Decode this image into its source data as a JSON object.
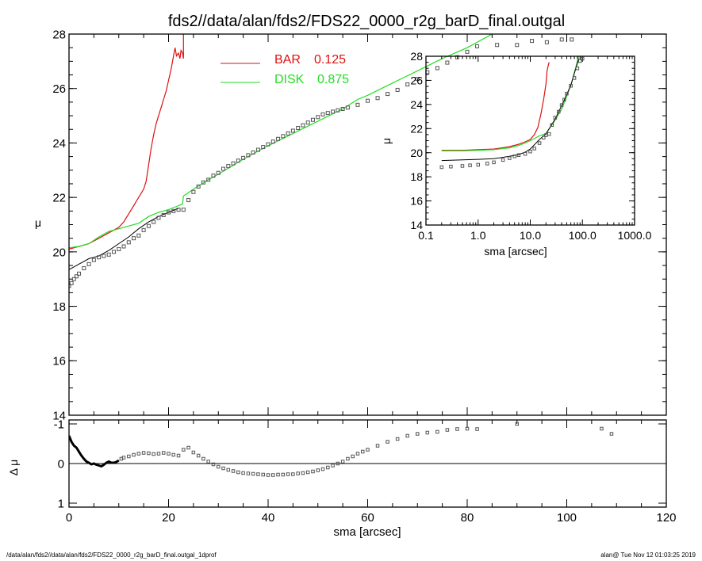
{
  "title": "fds2//data/alan/fds2/FDS22_0000_r2g_barD_final.outgal",
  "footer_left": "/data/alan/fds2//data/alan/fds2/FDS22_0000_r2g_barD_final.outgal_1dprof",
  "footer_right": "alan@  Tue Nov 12 01:03:25 2019",
  "colors": {
    "bar": "#dd1111",
    "disk": "#22dd22",
    "model": "#000000",
    "data": "#555555"
  },
  "chart_data": [
    {
      "name": "main-profile",
      "type": "line",
      "xlabel": "",
      "ylabel": "μ",
      "xlim": [
        0,
        120
      ],
      "ylim": [
        28,
        14
      ],
      "xticks": [
        0,
        20,
        40,
        60,
        80,
        100,
        120
      ],
      "xtick_labels": [
        "",
        "",
        "",
        "",
        "",
        "",
        ""
      ],
      "yticks": [
        14,
        16,
        18,
        20,
        22,
        24,
        26,
        28
      ],
      "ytick_labels": [
        "14",
        "16",
        "18",
        "20",
        "22",
        "24",
        "26",
        "28"
      ],
      "legend": [
        {
          "label": "BAR",
          "value": "0.125",
          "color": "#dd1111"
        },
        {
          "label": "DISK",
          "value": "0.875",
          "color": "#22dd22"
        }
      ],
      "series": [
        {
          "name": "BAR",
          "color": "#dd1111",
          "x": [
            0,
            2,
            4,
            6,
            8,
            10,
            11,
            12,
            13,
            14,
            15,
            15.5,
            16,
            16.5,
            17,
            17.5,
            18,
            18.5,
            19,
            19.5,
            20,
            20.5,
            21,
            21.3,
            21.6,
            22,
            22.3,
            22.5,
            22.8,
            23,
            23
          ],
          "y": [
            20.1,
            20.2,
            20.3,
            20.5,
            20.7,
            20.9,
            21.1,
            21.4,
            21.7,
            22.0,
            22.3,
            22.6,
            23.2,
            23.8,
            24.3,
            24.7,
            25.0,
            25.3,
            25.6,
            25.9,
            26.3,
            26.7,
            27.2,
            27.5,
            27.2,
            27.3,
            27.1,
            27.4,
            27.3,
            27.1,
            28.0
          ]
        },
        {
          "name": "DISK",
          "color": "#22dd22",
          "x": [
            0,
            2,
            4,
            6,
            8,
            10,
            12,
            14,
            16,
            18,
            20,
            22,
            22.8,
            23,
            25,
            28,
            30,
            35,
            40,
            45,
            50,
            55,
            58,
            60,
            65,
            70,
            75,
            80,
            85
          ],
          "y": [
            20.15,
            20.2,
            20.3,
            20.55,
            20.75,
            20.85,
            20.95,
            21.05,
            21.3,
            21.45,
            21.55,
            21.7,
            21.75,
            22.05,
            22.3,
            22.65,
            22.85,
            23.4,
            23.9,
            24.35,
            24.8,
            25.25,
            25.6,
            25.75,
            26.2,
            26.65,
            27.1,
            27.5,
            28.0
          ]
        },
        {
          "name": "MODEL",
          "color": "#000000",
          "x": [
            0,
            1,
            2,
            3,
            4,
            5,
            6,
            8,
            10,
            12,
            14,
            16,
            18,
            20,
            22
          ],
          "y": [
            19.35,
            19.45,
            19.55,
            19.65,
            19.75,
            19.8,
            19.85,
            20.05,
            20.3,
            20.55,
            20.85,
            21.1,
            21.3,
            21.45,
            21.6
          ]
        },
        {
          "name": "DATA",
          "color": "#555555",
          "x": [
            0,
            0.5,
            1,
            1.5,
            2,
            3,
            4,
            5,
            6,
            7,
            8,
            9,
            10,
            11,
            12,
            13,
            14,
            15,
            16,
            17,
            18,
            19,
            20,
            21,
            22,
            23,
            24,
            25,
            26,
            27,
            28,
            29,
            30,
            31,
            32,
            33,
            34,
            35,
            36,
            37,
            38,
            39,
            40,
            41,
            42,
            43,
            44,
            45,
            46,
            47,
            48,
            49,
            50,
            51,
            52,
            53,
            54,
            55,
            56,
            58,
            60,
            62,
            64,
            66,
            68,
            70,
            72,
            74,
            76,
            78,
            80,
            82,
            86,
            90,
            93,
            96,
            99,
            101
          ],
          "y": [
            18.75,
            18.85,
            19.0,
            19.1,
            19.2,
            19.4,
            19.55,
            19.7,
            19.8,
            19.85,
            19.9,
            20.0,
            20.1,
            20.2,
            20.35,
            20.5,
            20.6,
            20.8,
            20.95,
            21.1,
            21.25,
            21.35,
            21.45,
            21.5,
            21.55,
            21.55,
            21.9,
            22.2,
            22.4,
            22.55,
            22.65,
            22.8,
            22.9,
            23.05,
            23.15,
            23.25,
            23.35,
            23.45,
            23.55,
            23.65,
            23.75,
            23.85,
            23.95,
            24.05,
            24.15,
            24.25,
            24.35,
            24.45,
            24.55,
            24.65,
            24.75,
            24.85,
            24.95,
            25.05,
            25.1,
            25.15,
            25.2,
            25.25,
            25.3,
            25.4,
            25.55,
            25.65,
            25.8,
            25.95,
            26.15,
            26.35,
            26.6,
            26.75,
            26.95,
            27.15,
            27.35,
            27.55,
            27.6,
            27.6,
            27.75,
            27.7,
            27.8,
            27.8
          ]
        }
      ]
    },
    {
      "name": "residual",
      "type": "scatter",
      "xlabel": "sma [arcsec]",
      "ylabel": "Δ μ",
      "xlim": [
        0,
        120
      ],
      "ylim": [
        -1.1,
        1.1
      ],
      "xticks": [
        0,
        20,
        40,
        60,
        80,
        100,
        120
      ],
      "xtick_labels": [
        "0",
        "20",
        "40",
        "60",
        "80",
        "100",
        "120"
      ],
      "yticks": [
        -1,
        0,
        1
      ],
      "ytick_labels": [
        "-1",
        "0",
        "1"
      ],
      "zero_line": 0,
      "series": [
        {
          "name": "residual-line",
          "color": "#000000",
          "x": [
            0,
            0.5,
            1,
            1.5,
            2,
            2.5,
            3,
            3.5,
            4,
            4.5,
            5,
            5.5,
            6,
            6.5,
            7,
            7.5,
            8,
            8.5,
            9,
            9.5,
            10
          ],
          "y": [
            -0.7,
            -0.55,
            -0.45,
            -0.4,
            -0.3,
            -0.2,
            -0.12,
            -0.05,
            -0.02,
            0.02,
            0.0,
            0.03,
            0.05,
            0.07,
            0.03,
            -0.02,
            -0.05,
            -0.02,
            -0.02,
            -0.04,
            -0.08
          ]
        },
        {
          "name": "residual-points",
          "color": "#555555",
          "x": [
            10.5,
            11,
            12,
            13,
            14,
            15,
            16,
            17,
            18,
            19,
            20,
            21,
            22,
            23,
            24,
            25,
            26,
            27,
            28,
            29,
            30,
            31,
            32,
            33,
            34,
            35,
            36,
            37,
            38,
            39,
            40,
            41,
            42,
            43,
            44,
            45,
            46,
            47,
            48,
            49,
            50,
            51,
            52,
            53,
            54,
            55,
            56,
            57,
            58,
            59,
            60,
            62,
            64,
            66,
            68,
            70,
            72,
            74,
            76,
            78,
            80,
            82,
            90,
            107,
            109
          ],
          "y": [
            -0.12,
            -0.15,
            -0.18,
            -0.22,
            -0.25,
            -0.27,
            -0.26,
            -0.24,
            -0.25,
            -0.27,
            -0.25,
            -0.22,
            -0.2,
            -0.35,
            -0.4,
            -0.28,
            -0.2,
            -0.12,
            -0.05,
            0.02,
            0.08,
            0.12,
            0.16,
            0.19,
            0.22,
            0.24,
            0.25,
            0.26,
            0.27,
            0.28,
            0.29,
            0.29,
            0.28,
            0.28,
            0.27,
            0.27,
            0.25,
            0.24,
            0.22,
            0.2,
            0.17,
            0.14,
            0.1,
            0.05,
            0.0,
            -0.05,
            -0.12,
            -0.18,
            -0.25,
            -0.3,
            -0.35,
            -0.45,
            -0.55,
            -0.62,
            -0.7,
            -0.75,
            -0.78,
            -0.8,
            -0.85,
            -0.87,
            -0.88,
            -0.87,
            -1.0,
            -0.88,
            -0.75
          ]
        }
      ]
    },
    {
      "name": "inset-log-profile",
      "type": "line",
      "xlabel": "sma [arcsec]",
      "ylabel": "μ",
      "xscale": "log",
      "xlim": [
        0.1,
        1000
      ],
      "ylim": [
        28,
        14
      ],
      "xticks": [
        0.1,
        1,
        10,
        100,
        1000
      ],
      "xtick_labels": [
        "0.1",
        "1.0",
        "10.0",
        "100.0",
        "1000.0"
      ],
      "yticks": [
        14,
        16,
        18,
        20,
        22,
        24,
        26,
        28
      ],
      "ytick_labels": [
        "14",
        "16",
        "18",
        "20",
        "22",
        "24",
        "26",
        "28"
      ],
      "series": [
        {
          "name": "BAR",
          "color": "#dd1111",
          "x": [
            0.2,
            0.5,
            1,
            2,
            4,
            6,
            8,
            10,
            12,
            14,
            16,
            18,
            20,
            21,
            22,
            23
          ],
          "y": [
            20.2,
            20.2,
            20.25,
            20.3,
            20.5,
            20.7,
            20.9,
            21.1,
            21.5,
            22.1,
            23.2,
            24.4,
            25.7,
            26.8,
            27.2,
            27.5
          ]
        },
        {
          "name": "DISK",
          "color": "#22dd22",
          "x": [
            0.2,
            0.5,
            1,
            2,
            4,
            6,
            8,
            10,
            15,
            20,
            30,
            40,
            60,
            85
          ],
          "y": [
            20.15,
            20.15,
            20.2,
            20.25,
            20.4,
            20.6,
            20.8,
            21.0,
            21.4,
            21.6,
            22.7,
            23.6,
            25.6,
            28.0
          ]
        },
        {
          "name": "MODEL",
          "color": "#000000",
          "x": [
            0.2,
            0.5,
            1,
            2,
            4,
            6,
            8,
            10,
            15,
            20,
            30,
            40,
            60,
            85
          ],
          "y": [
            19.35,
            19.4,
            19.45,
            19.5,
            19.7,
            19.85,
            20.05,
            20.3,
            21.1,
            21.55,
            22.8,
            23.9,
            25.6,
            27.8
          ]
        },
        {
          "name": "DATA",
          "color": "#555555",
          "x": [
            0.2,
            0.3,
            0.5,
            0.7,
            1,
            1.5,
            2,
            3,
            4,
            5,
            6,
            8,
            10,
            12,
            15,
            18,
            20,
            23,
            26,
            30,
            35,
            40,
            45,
            50,
            60,
            70,
            80,
            90,
            100
          ],
          "y": [
            18.8,
            18.85,
            18.9,
            18.95,
            19.0,
            19.1,
            19.2,
            19.4,
            19.55,
            19.7,
            19.8,
            19.9,
            20.1,
            20.35,
            20.8,
            21.25,
            21.45,
            21.55,
            22.3,
            22.9,
            23.4,
            23.95,
            24.4,
            24.9,
            25.55,
            26.2,
            27.0,
            27.6,
            27.8
          ]
        }
      ]
    }
  ]
}
